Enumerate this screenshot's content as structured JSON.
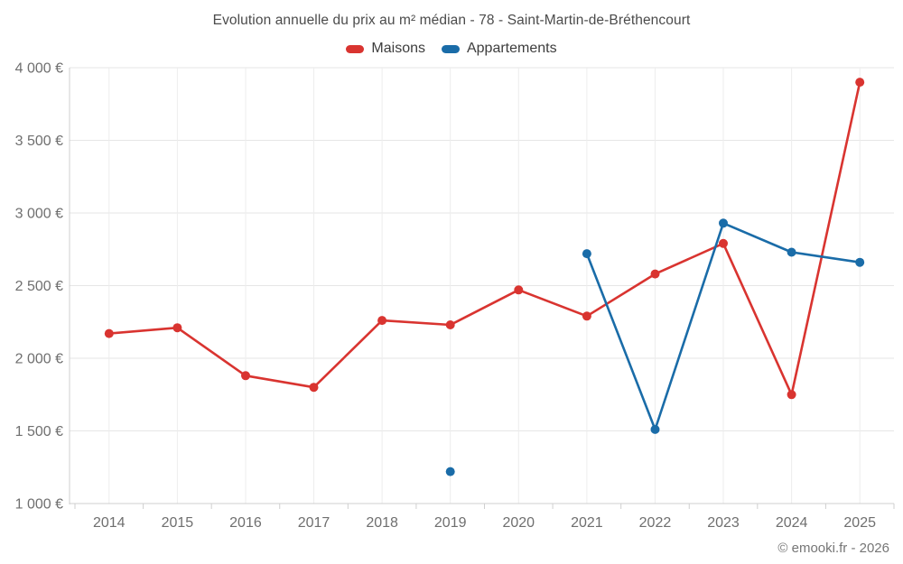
{
  "page": {
    "background": "#ffffff",
    "watermark": "© emooki.fr - 2026"
  },
  "chart_data": {
    "type": "line",
    "title": "Evolution annuelle du prix au m² médian - 78 - Saint-Martin-de-Bréthencourt",
    "categories": [
      "2014",
      "2015",
      "2016",
      "2017",
      "2018",
      "2019",
      "2020",
      "2021",
      "2022",
      "2023",
      "2024",
      "2025"
    ],
    "series": [
      {
        "name": "Maisons",
        "color": "#d93430",
        "values": [
          2170,
          2210,
          1880,
          1800,
          2260,
          2230,
          2470,
          2290,
          2580,
          2790,
          1750,
          3900
        ]
      },
      {
        "name": "Appartements",
        "color": "#1a6ca8",
        "values": [
          null,
          null,
          null,
          null,
          null,
          1220,
          null,
          2720,
          1510,
          2930,
          2730,
          2660
        ]
      }
    ],
    "ylim": [
      1000,
      4000
    ],
    "yticks": {
      "values": [
        1000,
        1500,
        2000,
        2500,
        3000,
        3500,
        4000
      ],
      "labels": [
        "1 000 €",
        "1 500 €",
        "2 000 €",
        "2 500 €",
        "3 000 €",
        "3 500 €",
        "4 000 €"
      ]
    },
    "legend_position": "top",
    "grid": true,
    "unit": "€/m²",
    "axis_color": "#cfcfcf",
    "h_gridline_color": "#e6e6e6",
    "v_gridline_color": "#ededed",
    "tick_label_color": "#6f6f6f",
    "title_color": "#4b4b4b"
  }
}
